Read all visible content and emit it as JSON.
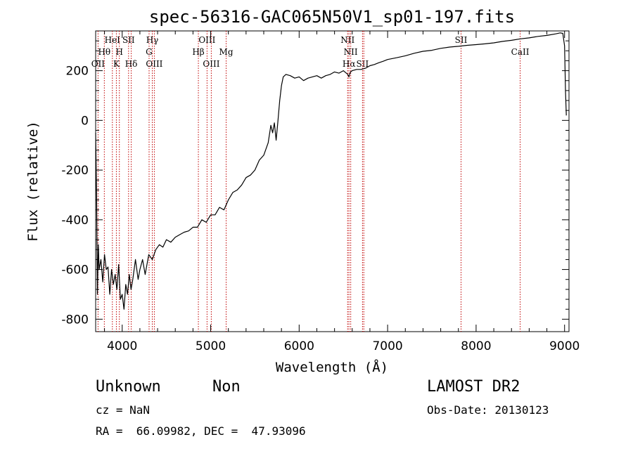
{
  "chart_data": {
    "type": "line",
    "title": "spec-56316-GAC065N50V1_sp01-197.fits",
    "xlabel": "Wavelength (Å)",
    "ylabel": "Flux (relative)",
    "xlim": [
      3700,
      9050
    ],
    "ylim": [
      -850,
      360
    ],
    "xticks": [
      4000,
      5000,
      6000,
      7000,
      8000,
      9000
    ],
    "yticks": [
      -800,
      -600,
      -400,
      -200,
      0,
      200
    ],
    "grid": false,
    "series": [
      {
        "color": "#000000",
        "x": [
          3700,
          3710,
          3720,
          3730,
          3740,
          3760,
          3780,
          3800,
          3820,
          3840,
          3860,
          3880,
          3900,
          3920,
          3940,
          3960,
          3980,
          4000,
          4020,
          4040,
          4060,
          4080,
          4100,
          4120,
          4150,
          4180,
          4200,
          4230,
          4260,
          4300,
          4340,
          4380,
          4420,
          4460,
          4500,
          4550,
          4600,
          4650,
          4700,
          4750,
          4800,
          4850,
          4900,
          4950,
          5000,
          5050,
          5100,
          5150,
          5200,
          5250,
          5300,
          5350,
          5400,
          5450,
          5500,
          5550,
          5600,
          5650,
          5680,
          5700,
          5720,
          5740,
          5760,
          5780,
          5800,
          5820,
          5850,
          5900,
          5950,
          6000,
          6050,
          6100,
          6150,
          6200,
          6250,
          6300,
          6350,
          6400,
          6450,
          6500,
          6550,
          6563,
          6580,
          6600,
          6650,
          6700,
          6750,
          6800,
          6850,
          6900,
          6950,
          7000,
          7100,
          7200,
          7300,
          7400,
          7500,
          7600,
          7700,
          7800,
          7900,
          8000,
          8100,
          8200,
          8300,
          8400,
          8500,
          8600,
          8700,
          8800,
          8900,
          8950,
          8980,
          9000,
          9010,
          9020
        ],
        "values": [
          -50,
          -300,
          -700,
          -500,
          -600,
          -560,
          -650,
          -540,
          -600,
          -590,
          -700,
          -600,
          -660,
          -620,
          -680,
          -580,
          -720,
          -700,
          -760,
          -660,
          -700,
          -620,
          -680,
          -640,
          -560,
          -640,
          -600,
          -560,
          -620,
          -540,
          -560,
          -520,
          -500,
          -510,
          -480,
          -490,
          -470,
          -460,
          -450,
          -445,
          -430,
          -430,
          -400,
          -410,
          -380,
          -380,
          -350,
          -360,
          -320,
          -290,
          -280,
          -260,
          -230,
          -220,
          -200,
          -160,
          -140,
          -90,
          -20,
          -50,
          -10,
          -80,
          -5,
          80,
          140,
          175,
          185,
          180,
          170,
          175,
          160,
          170,
          175,
          180,
          170,
          180,
          185,
          195,
          190,
          200,
          185,
          175,
          195,
          200,
          205,
          205,
          210,
          220,
          225,
          232,
          238,
          245,
          252,
          260,
          270,
          278,
          282,
          290,
          295,
          298,
          302,
          305,
          308,
          312,
          318,
          322,
          328,
          332,
          338,
          342,
          348,
          352,
          350,
          300,
          120,
          20
        ]
      }
    ],
    "lines": [
      {
        "x": 3727,
        "label": "OII",
        "row": 2
      },
      {
        "x": 3798,
        "label": "Hθ",
        "row": 1
      },
      {
        "x": 3889,
        "label": "HeI",
        "row": 0
      },
      {
        "x": 3934,
        "label": "K",
        "row": 2
      },
      {
        "x": 3968,
        "label": "H",
        "row": 1
      },
      {
        "x": 4072,
        "label": "SII",
        "row": 0
      },
      {
        "x": 4102,
        "label": "Hδ",
        "row": 2
      },
      {
        "x": 4304,
        "label": "G",
        "row": 1
      },
      {
        "x": 4340,
        "label": "Hγ",
        "row": 0
      },
      {
        "x": 4363,
        "label": "OIII",
        "row": 2
      },
      {
        "x": 4861,
        "label": "Hβ",
        "row": 1
      },
      {
        "x": 4959,
        "label": "OIII",
        "row": 0
      },
      {
        "x": 5007,
        "label": "OIII",
        "row": 2
      },
      {
        "x": 5175,
        "label": "Mg",
        "row": 1
      },
      {
        "x": 6548,
        "label": "NII",
        "row": 0
      },
      {
        "x": 6563,
        "label": "Hα",
        "row": 2
      },
      {
        "x": 6583,
        "label": "NII",
        "row": 1
      },
      {
        "x": 6716,
        "label": "SII",
        "row": 2
      },
      {
        "x": 6731,
        "label": "",
        "row": 2
      },
      {
        "x": 7830,
        "label": "SII",
        "row": 0
      },
      {
        "x": 8498,
        "label": "CaII",
        "row": 1
      }
    ]
  },
  "info": {
    "class": "Unknown",
    "subclass": "Non",
    "survey": "LAMOST DR2",
    "cz": "cz = NaN",
    "obsdate": "Obs-Date: 20130123",
    "coords": "RA =  66.09982, DEC =  47.93096"
  }
}
